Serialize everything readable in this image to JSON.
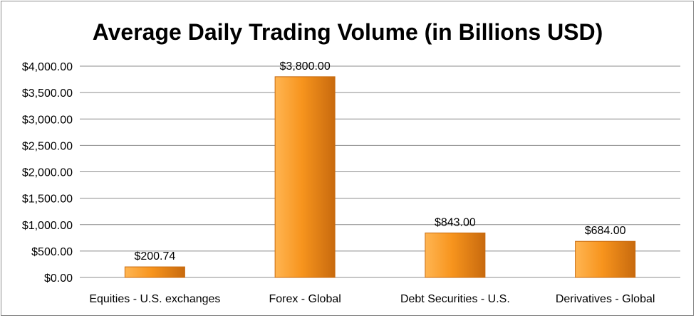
{
  "chart_data": {
    "type": "bar",
    "title": "Average Daily Trading Volume (in Billions USD)",
    "xlabel": "",
    "ylabel": "",
    "categories": [
      "Equities - U.S. exchanges",
      "Forex - Global",
      "Debt Securities - U.S.",
      "Derivatives - Global"
    ],
    "values": [
      200.74,
      3800.0,
      843.0,
      684.0
    ],
    "data_labels": [
      "$200.74",
      "$3,800.00",
      "$843.00",
      "$684.00"
    ],
    "ylim": [
      0,
      4000
    ],
    "y_ticks": [
      0,
      500,
      1000,
      1500,
      2000,
      2500,
      3000,
      3500,
      4000
    ],
    "y_tick_labels": [
      "$0.00",
      "$500.00",
      "$1,000.00",
      "$1,500.00",
      "$2,000.00",
      "$2,500.00",
      "$3,000.00",
      "$3,500.00",
      "$4,000.00"
    ],
    "grid": true,
    "legend": "none",
    "colors": {
      "bar_light": "#ffb552",
      "bar_mid": "#f7941d",
      "bar_dark": "#c86a0e",
      "grid": "#8c8c8c"
    }
  }
}
